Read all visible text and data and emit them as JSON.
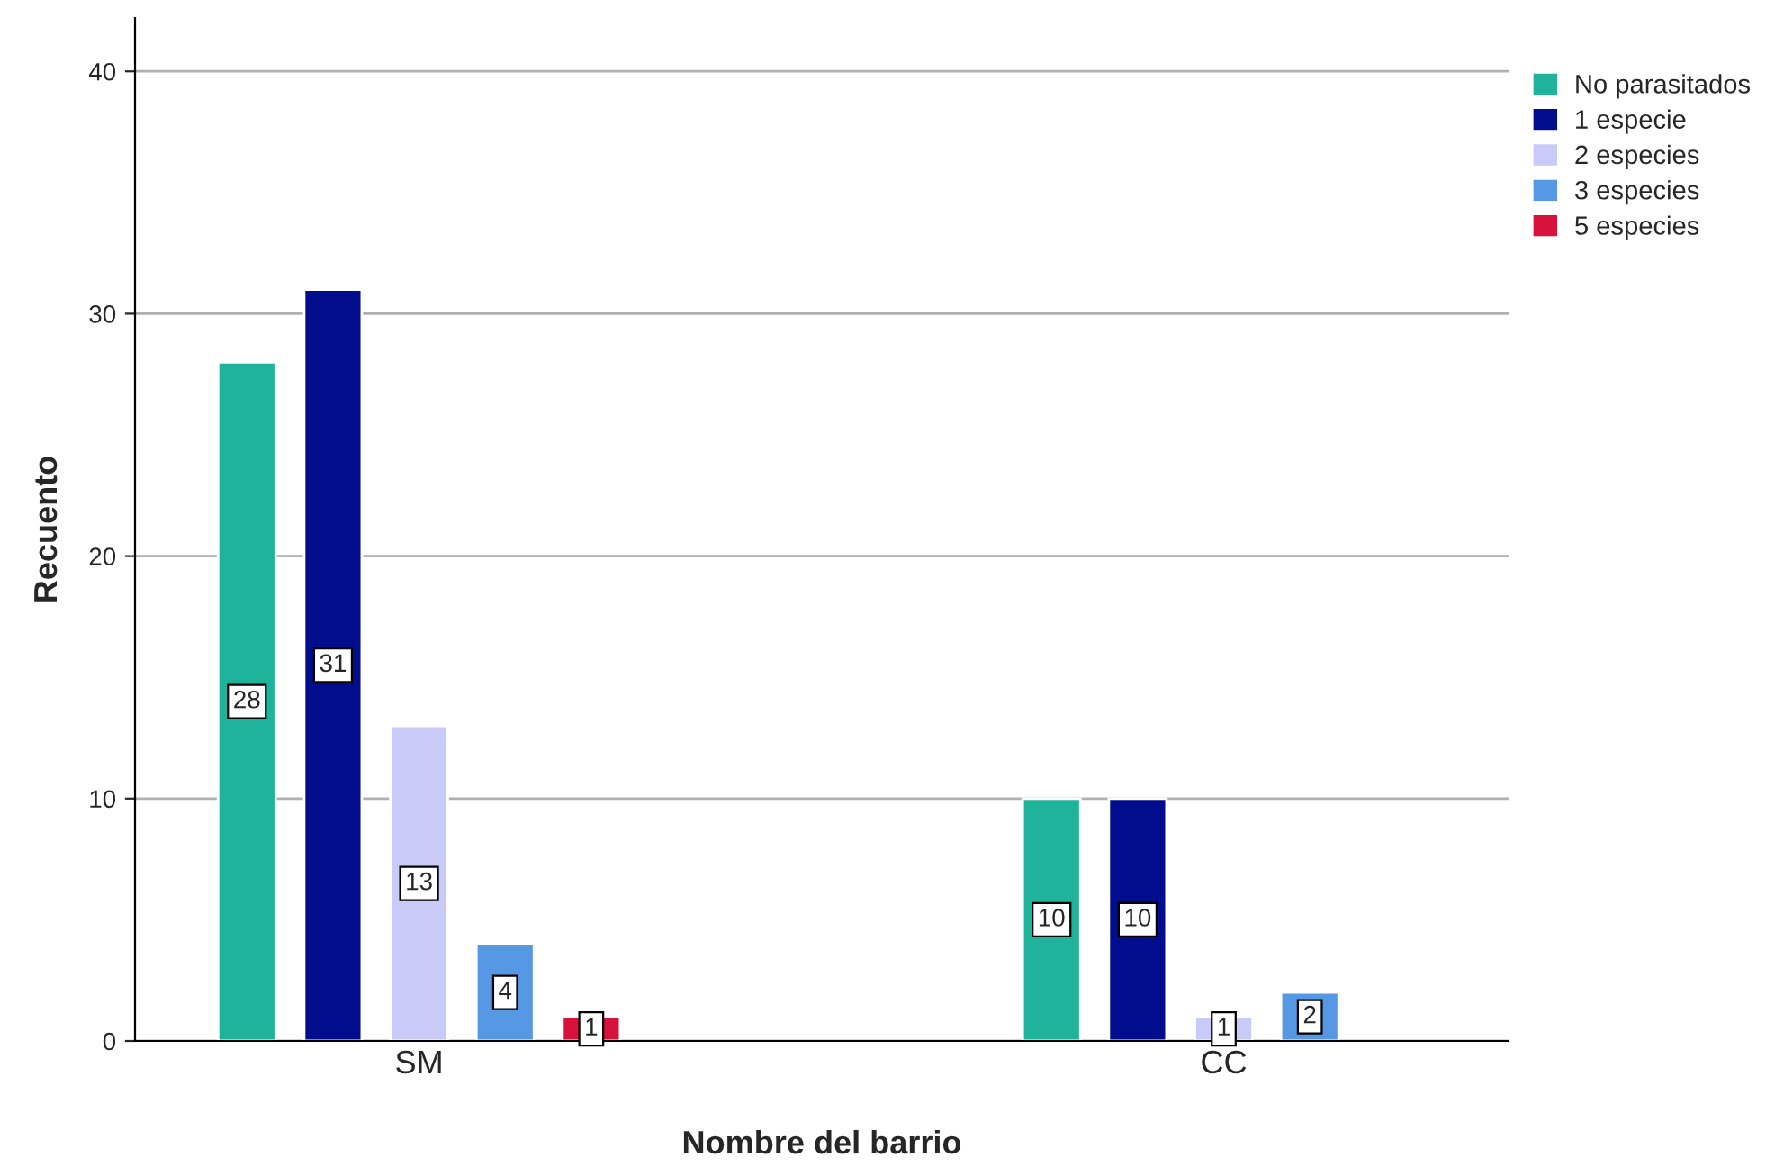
{
  "chart_data": {
    "type": "bar",
    "xlabel": "Nombre del barrio",
    "ylabel": "Recuento",
    "categories": [
      "SM",
      "CC"
    ],
    "series": [
      {
        "name": "No parasitados",
        "color": "#1fb39b",
        "values": [
          28,
          10
        ]
      },
      {
        "name": "1 especie",
        "color": "#020d8e",
        "values": [
          31,
          10
        ]
      },
      {
        "name": "2 especies",
        "color": "#cacaf8",
        "values": [
          13,
          1
        ]
      },
      {
        "name": "3 especies",
        "color": "#5698e4",
        "values": [
          4,
          2
        ]
      },
      {
        "name": "5 especies",
        "color": "#d7123c",
        "values": [
          1,
          null
        ]
      }
    ],
    "ylim": [
      0,
      42.2
    ],
    "yticks": [
      0,
      10,
      20,
      30,
      40
    ],
    "grid": "y",
    "legend": "top right",
    "data_labels": true
  }
}
